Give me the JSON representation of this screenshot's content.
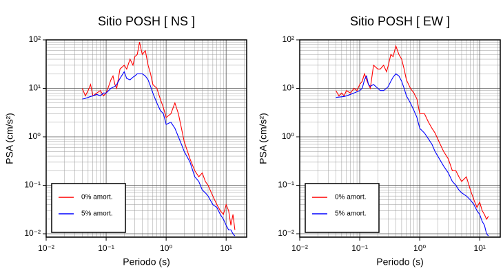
{
  "chart_data": [
    {
      "type": "line",
      "title": "Sitio POSH [ NS ]",
      "x_label": "Periodo (s)",
      "y_label": "PSA (cm/s²)",
      "log_x": true,
      "log_y": true,
      "grid": true,
      "legend": "lower left",
      "xlim": [
        0.01,
        22
      ],
      "ylim": [
        0.0085,
        100
      ],
      "xticks": [
        {
          "value": 0.01,
          "label": "10⁻²"
        },
        {
          "value": 0.1,
          "label": "10⁻¹"
        },
        {
          "value": 1,
          "label": "10⁰"
        },
        {
          "value": 10,
          "label": "10¹"
        }
      ],
      "yticks": [
        {
          "value": 0.01,
          "label": "10⁻²"
        },
        {
          "value": 0.1,
          "label": "10⁻¹"
        },
        {
          "value": 1,
          "label": "10⁰"
        },
        {
          "value": 10,
          "label": "10¹"
        },
        {
          "value": 100,
          "label": "10²"
        }
      ],
      "x": [
        0.04,
        0.045,
        0.05,
        0.055,
        0.06,
        0.07,
        0.08,
        0.09,
        0.1,
        0.11,
        0.12,
        0.13,
        0.14,
        0.15,
        0.17,
        0.2,
        0.22,
        0.25,
        0.28,
        0.3,
        0.33,
        0.36,
        0.4,
        0.45,
        0.5,
        0.55,
        0.6,
        0.7,
        0.8,
        0.9,
        1,
        1.2,
        1.4,
        1.6,
        1.8,
        2,
        2.5,
        3,
        3.5,
        4,
        4.5,
        5,
        6,
        7,
        8,
        9,
        10,
        11,
        12,
        13,
        14
      ],
      "series": [
        {
          "name": "0% amort.",
          "color": "#ff0000",
          "values": [
            10,
            7,
            9,
            12,
            7,
            8,
            9,
            7,
            8,
            11,
            15,
            18,
            12,
            10,
            25,
            30,
            25,
            40,
            30,
            45,
            50,
            90,
            50,
            60,
            30,
            20,
            12,
            10,
            6,
            4,
            2.5,
            3,
            5,
            3,
            1.5,
            0.8,
            0.35,
            0.2,
            0.15,
            0.18,
            0.12,
            0.1,
            0.06,
            0.04,
            0.03,
            0.025,
            0.04,
            0.03,
            0.015,
            0.025,
            0.012
          ]
        },
        {
          "name": "5% amort.",
          "color": "#0000ff",
          "values": [
            6,
            6.2,
            6.5,
            6.8,
            7,
            7.5,
            7,
            8,
            8,
            9,
            10,
            10.5,
            11,
            12,
            16,
            22,
            16,
            15,
            17,
            18,
            20,
            20,
            20,
            18,
            15,
            11,
            8,
            5,
            3.5,
            3,
            1.8,
            2,
            1.5,
            1,
            0.7,
            0.5,
            0.3,
            0.15,
            0.12,
            0.08,
            0.07,
            0.06,
            0.04,
            0.035,
            0.025,
            0.02,
            0.015,
            0.012,
            0.012,
            0.01,
            0.009
          ]
        }
      ]
    },
    {
      "type": "line",
      "title": "Sitio POSH [ EW ]",
      "x_label": "Periodo (s)",
      "y_label": "PSA (cm/s²)",
      "log_x": true,
      "log_y": true,
      "grid": true,
      "legend": "lower left",
      "xlim": [
        0.01,
        22
      ],
      "ylim": [
        0.0085,
        100
      ],
      "xticks": [
        {
          "value": 0.01,
          "label": "10⁻²"
        },
        {
          "value": 0.1,
          "label": "10⁻¹"
        },
        {
          "value": 1,
          "label": "10⁰"
        },
        {
          "value": 10,
          "label": "10¹"
        }
      ],
      "yticks": [
        {
          "value": 0.01,
          "label": "10⁻²"
        },
        {
          "value": 0.1,
          "label": "10⁻¹"
        },
        {
          "value": 1,
          "label": "10⁰"
        },
        {
          "value": 10,
          "label": "10¹"
        },
        {
          "value": 100,
          "label": "10²"
        }
      ],
      "x": [
        0.04,
        0.045,
        0.05,
        0.055,
        0.06,
        0.07,
        0.08,
        0.09,
        0.1,
        0.11,
        0.12,
        0.13,
        0.14,
        0.15,
        0.17,
        0.2,
        0.22,
        0.25,
        0.28,
        0.3,
        0.33,
        0.36,
        0.4,
        0.45,
        0.5,
        0.55,
        0.6,
        0.7,
        0.8,
        0.9,
        1,
        1.2,
        1.4,
        1.6,
        1.8,
        2,
        2.5,
        3,
        3.5,
        4,
        4.5,
        5,
        6,
        7,
        8,
        9,
        10,
        11,
        12,
        13,
        14
      ],
      "series": [
        {
          "name": "0% amort.",
          "color": "#ff0000",
          "values": [
            9,
            7,
            8,
            7,
            9,
            8,
            10,
            9,
            12,
            14,
            20,
            15,
            12,
            10,
            30,
            25,
            25,
            30,
            22,
            30,
            50,
            45,
            75,
            50,
            40,
            25,
            15,
            10,
            8,
            6,
            3,
            3,
            2,
            1.5,
            1.2,
            0.9,
            0.5,
            0.35,
            0.2,
            0.2,
            0.15,
            0.12,
            0.15,
            0.08,
            0.05,
            0.035,
            0.045,
            0.03,
            0.025,
            0.02,
            0.023
          ]
        },
        {
          "name": "5% amort.",
          "color": "#0000ff",
          "values": [
            6.5,
            6.6,
            6.7,
            6.8,
            7,
            7.5,
            8,
            8.5,
            9,
            10,
            15,
            18,
            12,
            11,
            12,
            10,
            9,
            9,
            10,
            11,
            14,
            17,
            20,
            18,
            14,
            10,
            7,
            5,
            3.5,
            2.5,
            1.5,
            1.2,
            0.9,
            0.7,
            0.5,
            0.4,
            0.25,
            0.18,
            0.12,
            0.1,
            0.08,
            0.07,
            0.06,
            0.05,
            0.04,
            0.03,
            0.025,
            0.018,
            0.015,
            0.01,
            0.009
          ]
        }
      ]
    }
  ]
}
